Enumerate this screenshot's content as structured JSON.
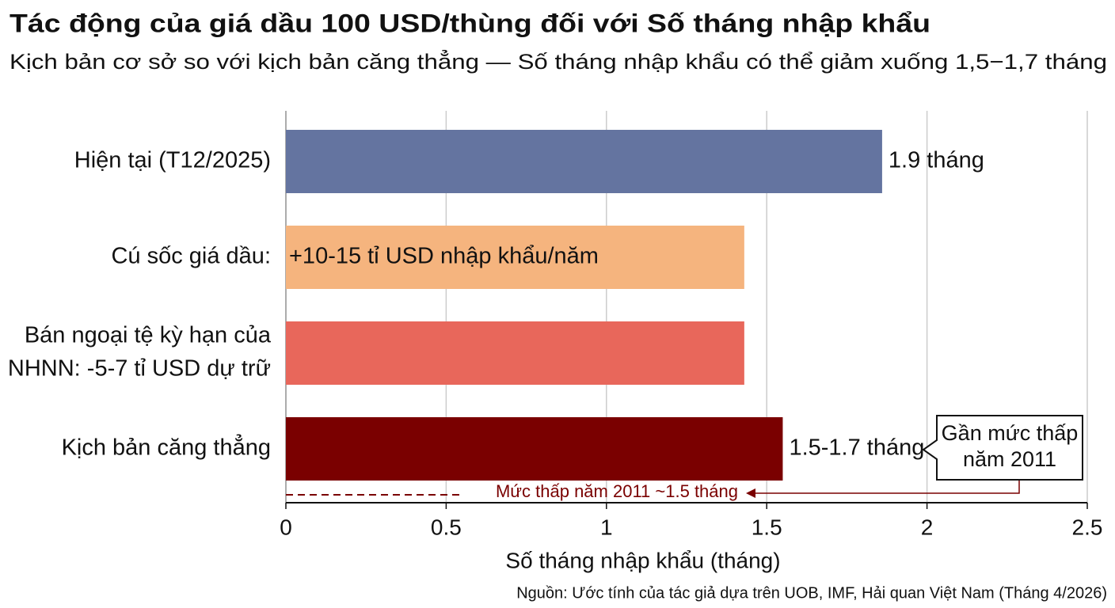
{
  "chart_data": {
    "type": "hbar",
    "title": "Tác động của giá dầu 100 USD/thùng đối với Số tháng nhập khẩu",
    "subtitle": "Kịch bản cơ sở so với kịch bản căng thẳng — Số tháng nhập khẩu có thể giảm xuống 1,5−1,7 tháng",
    "categories": [
      [
        "Hiện tại (T12/2025)"
      ],
      [
        "Cú sốc giá dầu:"
      ],
      [
        "Bán ngoại tệ kỳ hạn của",
        "NHNN: -5-7 tỉ USD dự trữ"
      ],
      [
        "Kịch bản căng thẳng"
      ]
    ],
    "values": [
      1.86,
      1.43,
      1.43,
      1.55
    ],
    "value_labels": [
      "1.9 tháng",
      "+10-15 tỉ USD nhập khẩu/năm",
      null,
      "1.5-1.7 tháng"
    ],
    "label_inside": [
      false,
      true,
      false,
      false
    ],
    "colors": [
      "#6474a0",
      "#f5b47e",
      "#e8675b",
      "#7a0000"
    ],
    "xlim": [
      0,
      2.5
    ],
    "xticks": [
      0,
      0.5,
      1,
      1.5,
      2,
      2.5
    ],
    "grid": true,
    "xlabel": "Số tháng nhập khẩu (tháng)",
    "annotations": {
      "reference": "Mức thấp năm 2011 ~1.5 tháng",
      "callout": [
        "Gần mức thấp",
        "năm 2011"
      ]
    },
    "source": "Nguồn: Ước tính của tác giả dựa trên UOB, IMF, Hải quan Việt Nam (Tháng 4/2026)"
  }
}
